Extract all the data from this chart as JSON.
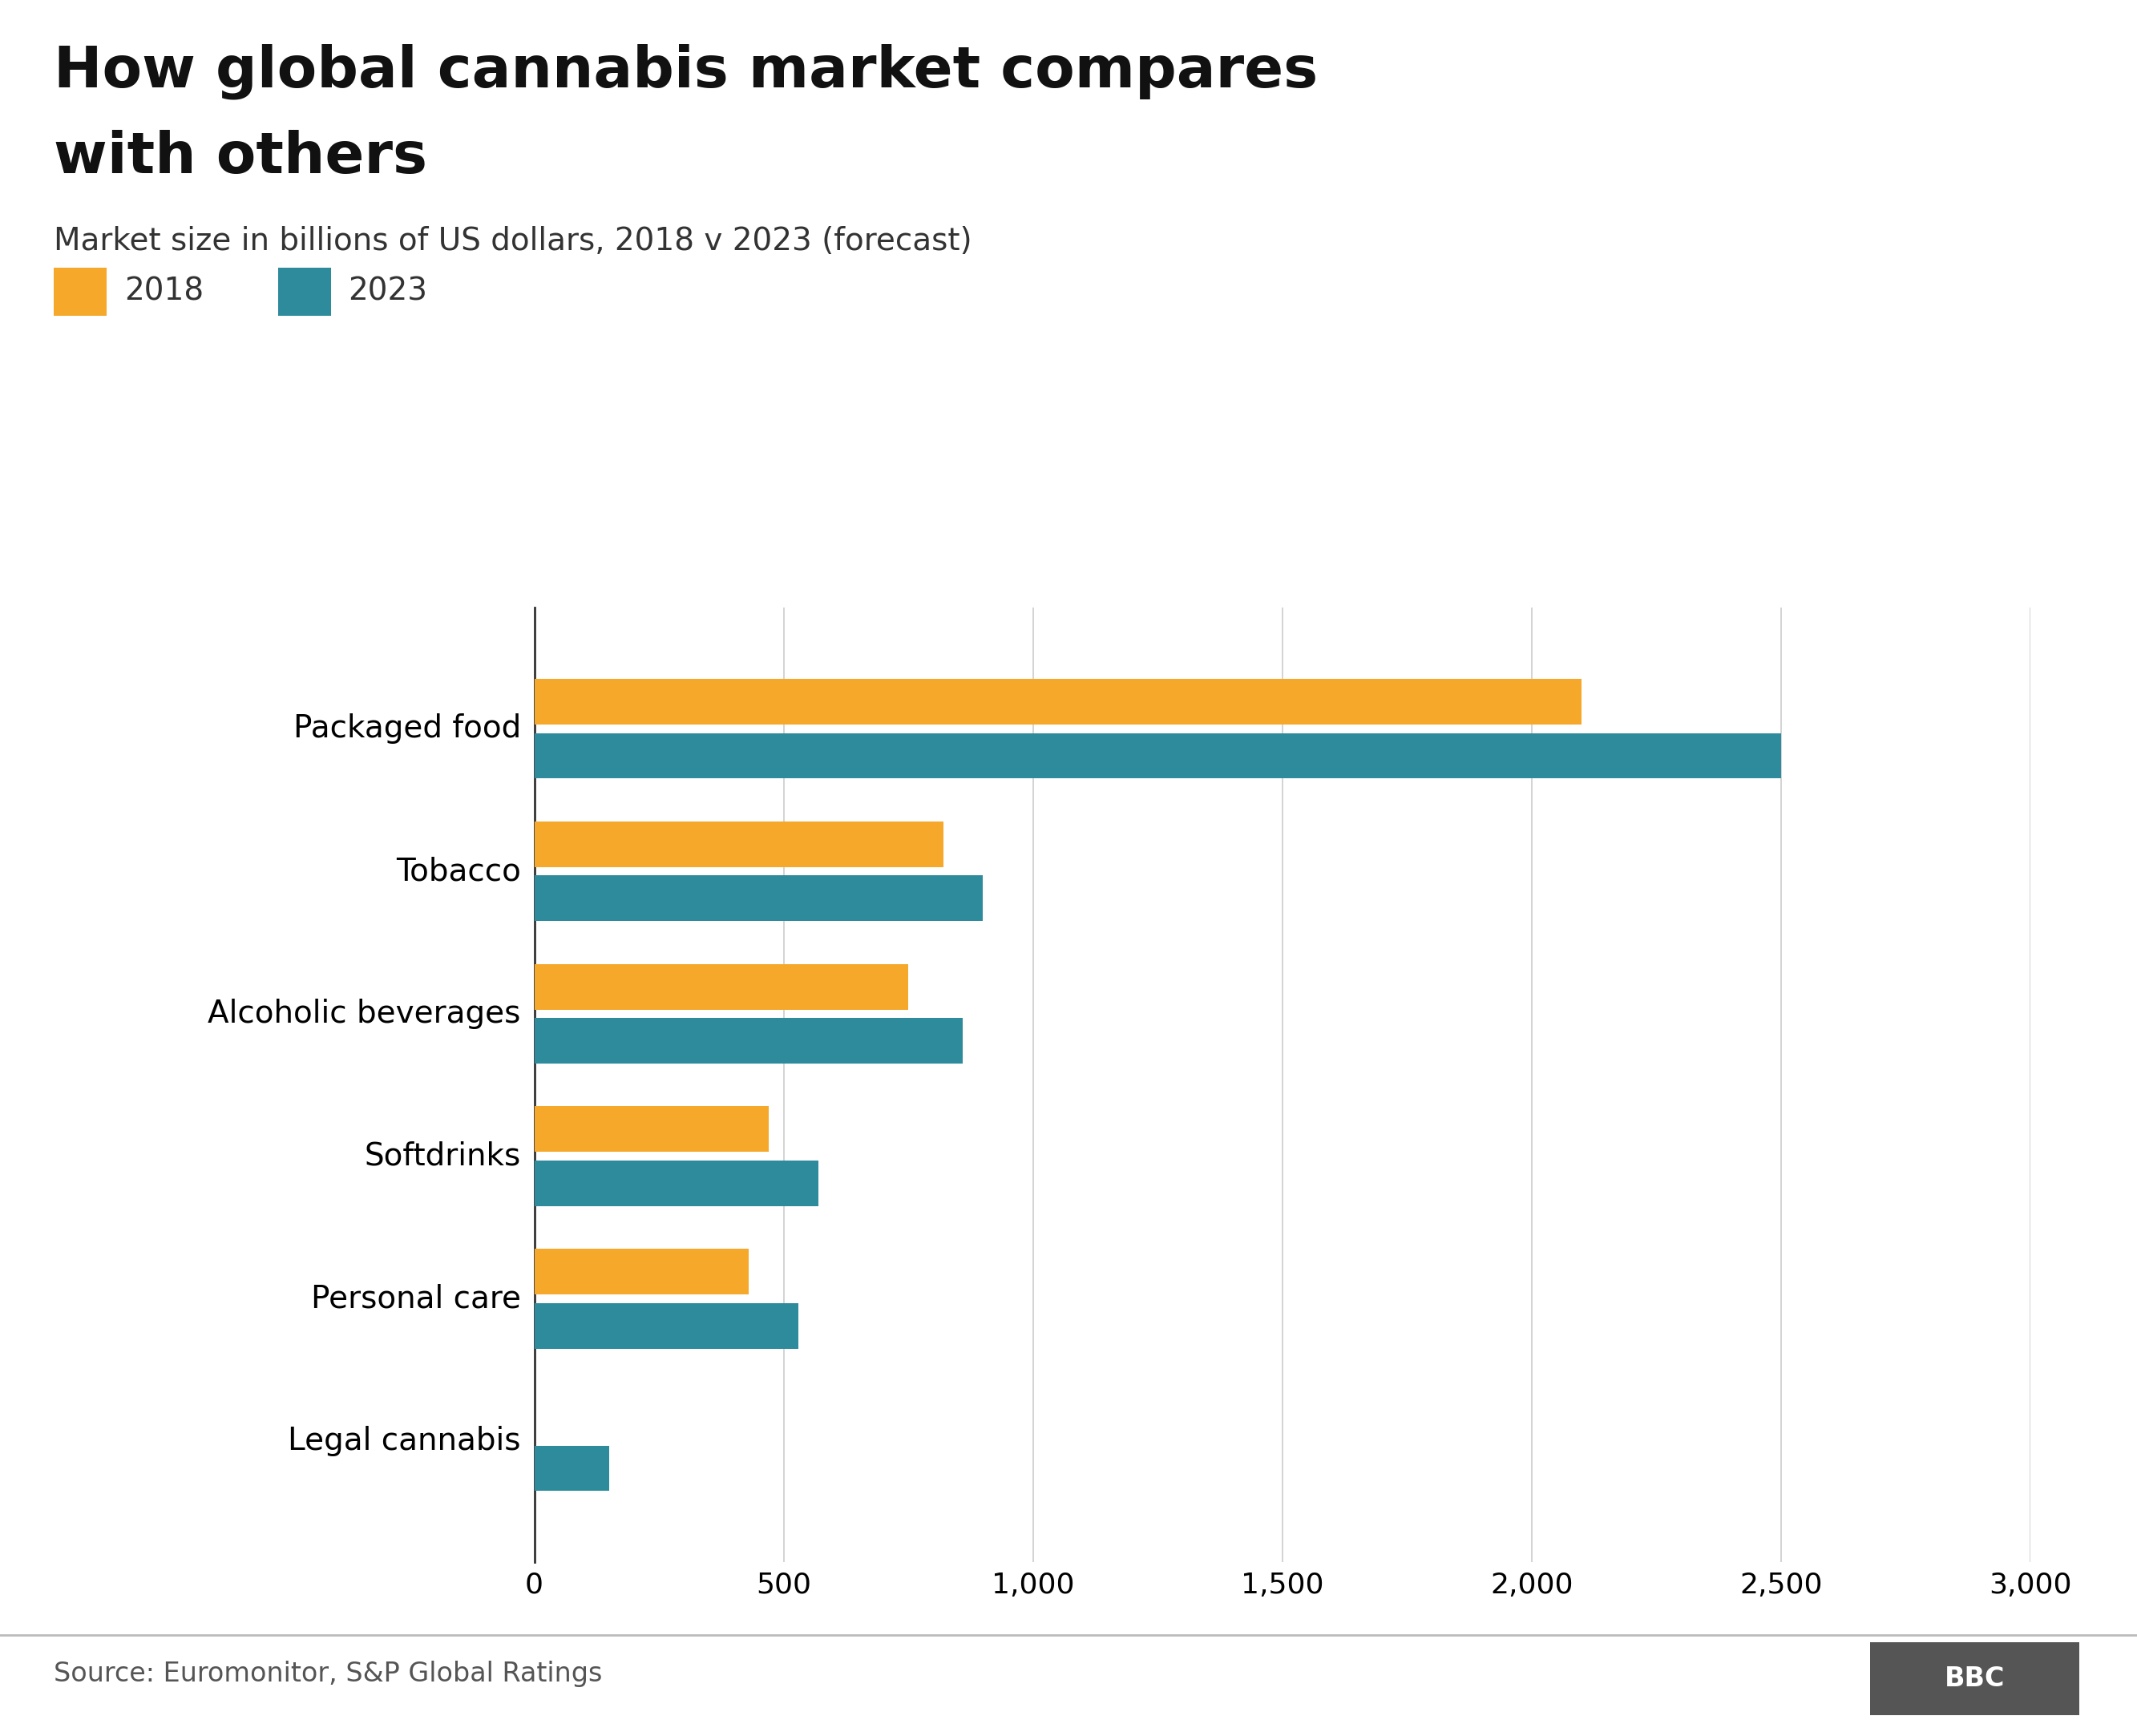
{
  "title_line1": "How global cannabis market compares",
  "title_line2": "with others",
  "subtitle": "Market size in billions of US dollars, 2018 v 2023 (forecast)",
  "source": "Source: Euromonitor, S&P Global Ratings",
  "categories": [
    "Packaged food",
    "Tobacco",
    "Alcoholic beverages",
    "Softdrinks",
    "Personal care",
    "Legal cannabis"
  ],
  "values_2018": [
    2100,
    820,
    750,
    470,
    430,
    0
  ],
  "values_2023": [
    2500,
    900,
    860,
    570,
    530,
    150
  ],
  "color_2018": "#F5A82A",
  "color_2023": "#2E8B9C",
  "legend_labels": [
    "2018",
    "2023"
  ],
  "xlim": [
    0,
    3000
  ],
  "xticks": [
    0,
    500,
    1000,
    1500,
    2000,
    2500,
    3000
  ],
  "xtick_labels": [
    "0",
    "500",
    "1,000",
    "1,500",
    "2,000",
    "2,500",
    "3,000"
  ],
  "background_color": "#ffffff",
  "title_fontsize": 52,
  "subtitle_fontsize": 28,
  "label_fontsize": 28,
  "tick_fontsize": 26,
  "legend_fontsize": 28,
  "source_fontsize": 24,
  "bar_height": 0.32,
  "bar_gap": 0.06
}
